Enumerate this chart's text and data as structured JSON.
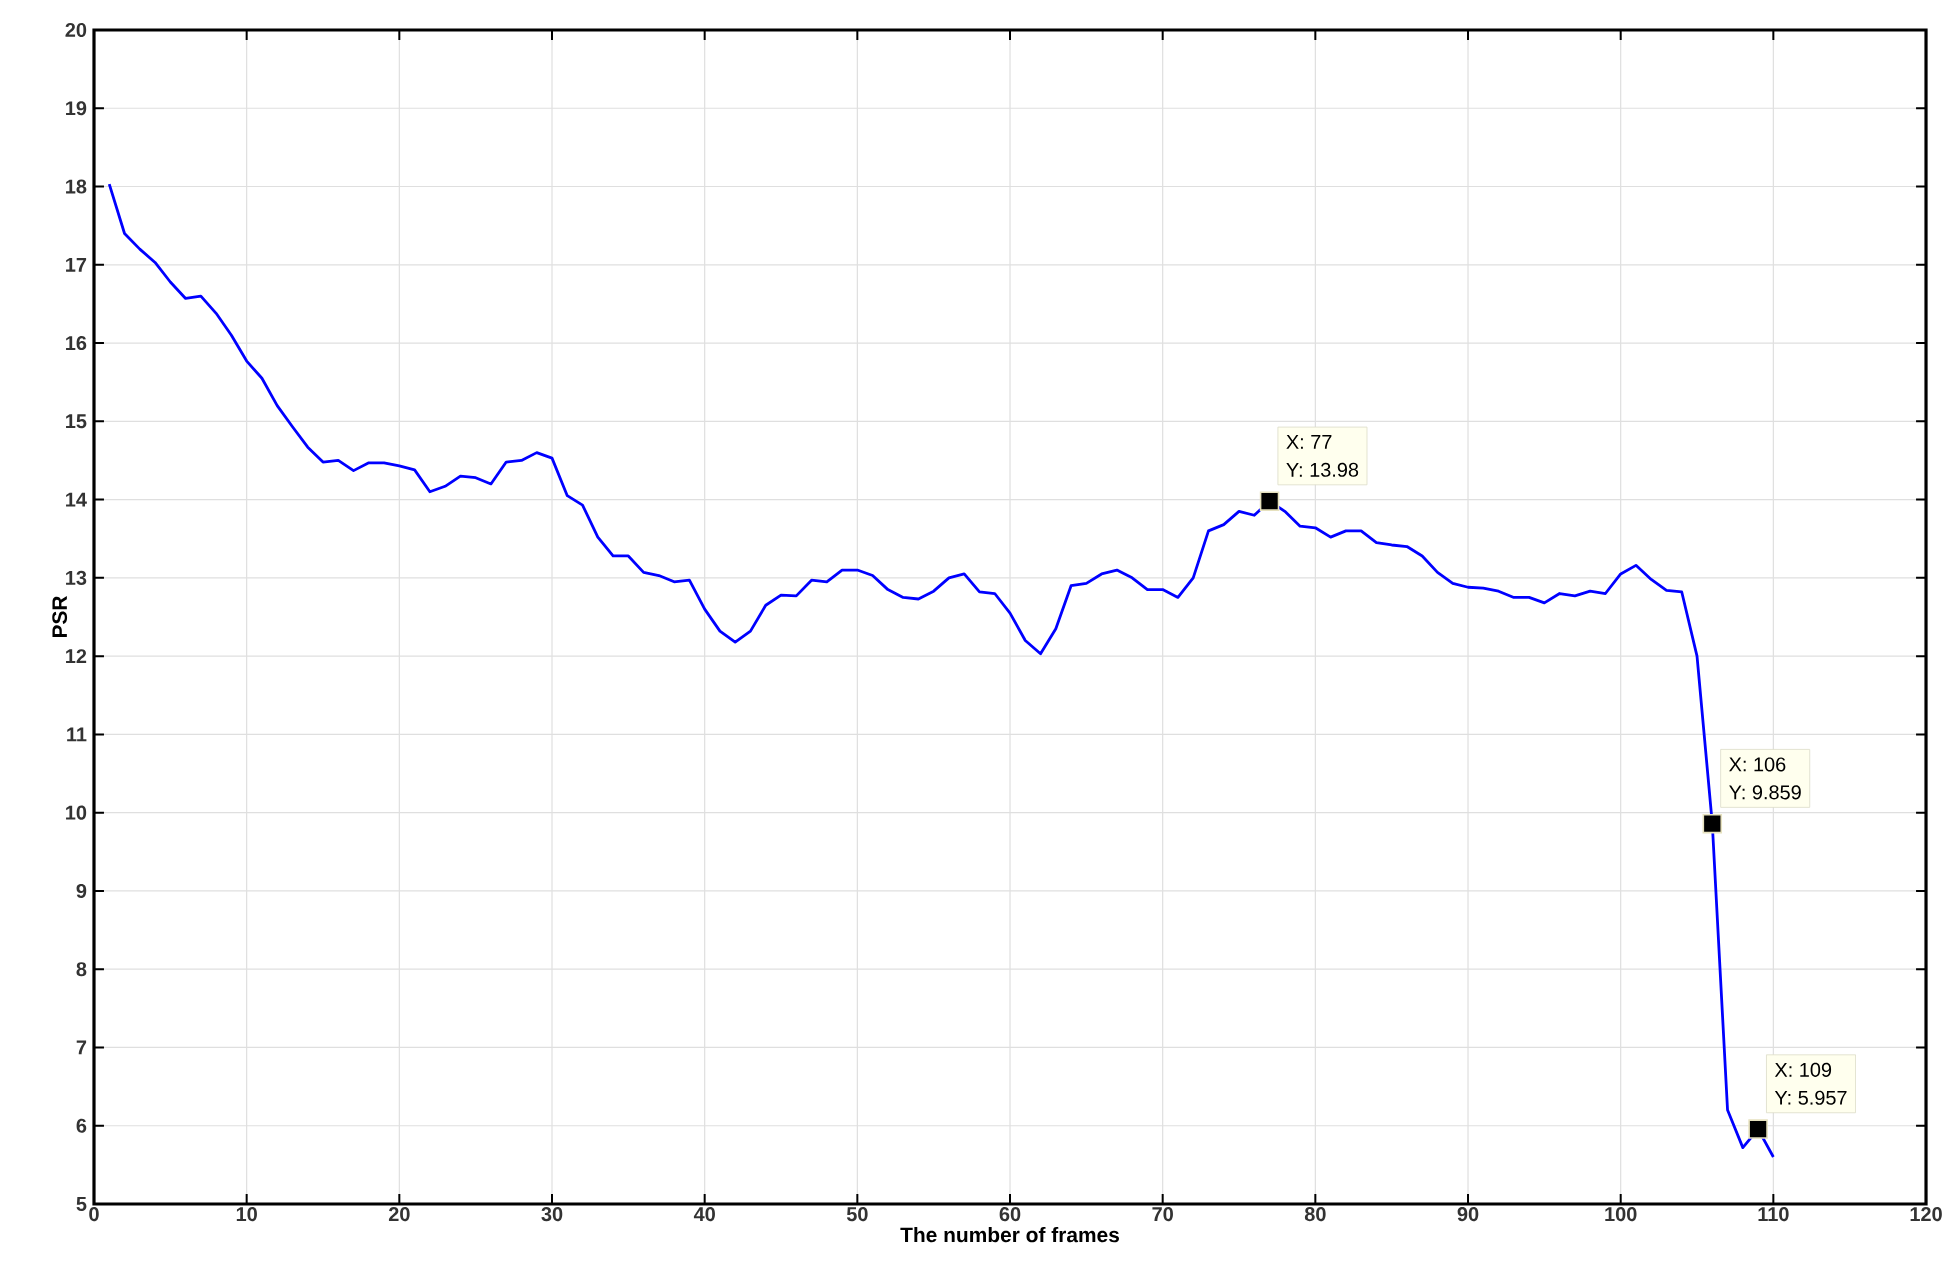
{
  "chart_data": {
    "type": "line",
    "xlabel": "The number of frames",
    "ylabel": "PSR",
    "xlim": [
      0,
      120
    ],
    "xticks": [
      0,
      10,
      20,
      30,
      40,
      50,
      60,
      70,
      80,
      90,
      100,
      110,
      120
    ],
    "ylim": [
      5,
      20
    ],
    "yticks": [
      5,
      6,
      7,
      8,
      9,
      10,
      11,
      12,
      13,
      14,
      15,
      16,
      17,
      18,
      19,
      20
    ],
    "grid": true,
    "line_style": "solid",
    "x": [
      1,
      2,
      3,
      4,
      5,
      6,
      7,
      8,
      9,
      10,
      11,
      12,
      13,
      14,
      15,
      16,
      17,
      18,
      19,
      20,
      21,
      22,
      23,
      24,
      25,
      26,
      27,
      28,
      29,
      30,
      31,
      32,
      33,
      34,
      35,
      36,
      37,
      38,
      39,
      40,
      41,
      42,
      43,
      44,
      45,
      46,
      47,
      48,
      49,
      50,
      51,
      52,
      53,
      54,
      55,
      56,
      57,
      58,
      59,
      60,
      61,
      62,
      63,
      64,
      65,
      66,
      67,
      68,
      69,
      70,
      71,
      72,
      73,
      74,
      75,
      76,
      77,
      78,
      79,
      80,
      81,
      82,
      83,
      84,
      85,
      86,
      87,
      88,
      89,
      90,
      91,
      92,
      93,
      94,
      95,
      96,
      97,
      98,
      99,
      100,
      101,
      102,
      103,
      104,
      105,
      106,
      107,
      108,
      109,
      110
    ],
    "series": [
      {
        "color": "#0000ff",
        "values": [
          18.03,
          17.4,
          17.2,
          17.03,
          16.78,
          16.57,
          16.6,
          16.38,
          16.1,
          15.77,
          15.55,
          15.2,
          14.93,
          14.67,
          14.48,
          14.5,
          14.37,
          14.47,
          14.47,
          14.43,
          14.38,
          14.1,
          14.17,
          14.3,
          14.28,
          14.2,
          14.48,
          14.5,
          14.6,
          14.53,
          14.05,
          13.93,
          13.52,
          13.28,
          13.28,
          13.07,
          13.03,
          12.95,
          12.97,
          12.6,
          12.32,
          12.18,
          12.32,
          12.65,
          12.78,
          12.77,
          12.97,
          12.95,
          13.1,
          13.1,
          13.03,
          12.85,
          12.75,
          12.73,
          12.83,
          13.0,
          13.05,
          12.82,
          12.8,
          12.55,
          12.2,
          12.03,
          12.35,
          12.9,
          12.93,
          13.05,
          13.1,
          13.0,
          12.85,
          12.85,
          12.75,
          13.0,
          13.6,
          13.68,
          13.85,
          13.8,
          13.98,
          13.85,
          13.66,
          13.64,
          13.52,
          13.6,
          13.6,
          13.45,
          13.42,
          13.4,
          13.28,
          13.07,
          12.93,
          12.88,
          12.87,
          12.83,
          12.75,
          12.75,
          12.68,
          12.8,
          12.77,
          12.83,
          12.8,
          13.05,
          13.16,
          12.98,
          12.84,
          12.82,
          12.0,
          9.859,
          6.2,
          5.72,
          5.957,
          5.6
        ]
      }
    ],
    "annotations": [
      {
        "text": "X: 77",
        "x": 77,
        "y": 13.98
      },
      {
        "text": "Y: 13.98",
        "x": 77,
        "y": 13.98
      },
      {
        "text": "X: 106",
        "x": 106,
        "y": 9.859
      },
      {
        "text": "Y: 9.859",
        "x": 106,
        "y": 9.859
      },
      {
        "text": "X: 109",
        "x": 109,
        "y": 5.957
      },
      {
        "text": "Y: 5.957",
        "x": 109,
        "y": 5.957
      }
    ]
  }
}
